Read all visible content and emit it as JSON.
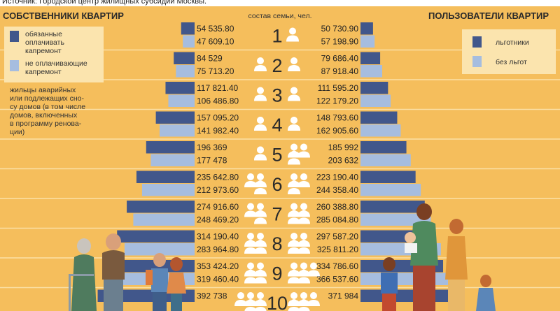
{
  "source": "Источник: Городской центр жилищных субсидий Москвы.",
  "colors": {
    "background": "#f5be5c",
    "dark_bar": "#41578b",
    "light_bar": "#a6bddf",
    "legend_box": "#fbe4ae",
    "separator": "#fbe0a6"
  },
  "left_panel": {
    "title": "СОБСТВЕННИКИ КВАРТИР",
    "legend": [
      {
        "lines": [
          "обязанные",
          "оплачивать",
          "капремонт"
        ],
        "color": "#41578b"
      },
      {
        "lines": [
          "не оплачивающие",
          "капремонт"
        ],
        "color": "#a6bddf"
      }
    ],
    "note_lines": [
      "жильцы аварийных",
      "или подлежащих сно-",
      "су домов (в том числе",
      "домов, включенных",
      "в программу ренова-",
      "ции)"
    ]
  },
  "right_panel": {
    "title": "ПОЛЬЗОВАТЕЛИ КВАРТИР",
    "legend": [
      {
        "label": "льготники",
        "color": "#41578b"
      },
      {
        "label": "без льгот",
        "color": "#a6bddf"
      }
    ]
  },
  "center_label": "состав семьи, чел.",
  "chart_data": {
    "type": "bar",
    "orientation": "horizontal-pyramid",
    "categories": [
      "1",
      "2",
      "3",
      "4",
      "5",
      "6",
      "7",
      "8",
      "9",
      "10"
    ],
    "category_label": "состав семьи, чел.",
    "left": {
      "title": "СОБСТВЕННИКИ КВАРТИР",
      "series": [
        {
          "name": "обязанные оплачивать капремонт",
          "color": "#41578b",
          "values": [
            54535.8,
            84529,
            117821.4,
            157095.2,
            196369,
            235642.8,
            274916.6,
            314190.4,
            353424.2,
            392738
          ],
          "labels": [
            "54 535.80",
            "84 529",
            "117 821.40",
            "157 095.20",
            "196 369",
            "235 642.80",
            "274 916.60",
            "314 190.40",
            "353 424.20",
            "392 738"
          ]
        },
        {
          "name": "не оплачивающие капремонт",
          "color": "#a6bddf",
          "values": [
            47609.1,
            75713.2,
            106486.8,
            141982.4,
            177478,
            212973.6,
            248469.2,
            283964.8,
            319460.4,
            null
          ],
          "labels": [
            "47 609.10",
            "75 713.20",
            "106 486.80",
            "141 982.40",
            "177 478",
            "212 973.60",
            "248 469.20",
            "283 964.80",
            "319 460.40",
            ""
          ]
        }
      ]
    },
    "right": {
      "title": "ПОЛЬЗОВАТЕЛИ КВАРТИР",
      "series": [
        {
          "name": "льготники",
          "color": "#41578b",
          "values": [
            50730.9,
            79686.4,
            111595.2,
            148793.6,
            185992,
            223190.4,
            260388.8,
            297587.2,
            334786.6,
            371984
          ],
          "labels": [
            "50 730.90",
            "79 686.40",
            "111 595.20",
            "148 793.60",
            "185 992",
            "223 190.40",
            "260 388.80",
            "297 587.20",
            "334 786.60",
            "371 984"
          ]
        },
        {
          "name": "без льгот",
          "color": "#a6bddf",
          "values": [
            57198.9,
            87918.4,
            122179.2,
            162905.6,
            203632,
            244358.4,
            285084.8,
            325811.2,
            366537.6,
            null
          ],
          "labels": [
            "57 198.90",
            "87 918.40",
            "122 179.20",
            "162 905.60",
            "203 632",
            "244 358.40",
            "285 084.80",
            "325 811.20",
            "366 537.60",
            ""
          ]
        }
      ]
    }
  }
}
